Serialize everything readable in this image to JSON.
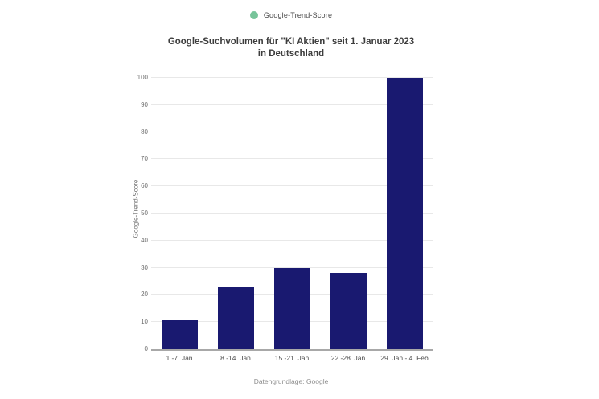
{
  "legend": {
    "label": "Google-Trend-Score",
    "dot_color": "#77c49a",
    "dot_icon": "circle"
  },
  "title": {
    "line1": "Google-Suchvolumen für \"KI Aktien\" seit 1. Januar 2023",
    "line2": "in Deutschland"
  },
  "footer": "Datengrundlage: Google",
  "colors": {
    "bar": "#191970",
    "gridline": "#e8e8e8",
    "axis_line": "#a8a8a8",
    "title_text": "#3d3d3d",
    "tick_text": "#6e6e6e",
    "legend_dot": "#77c49a"
  },
  "chart_data": {
    "type": "bar",
    "title": "Google-Suchvolumen für \"KI Aktien\" seit 1. Januar 2023 in Deutschland",
    "categories": [
      "1.-7. Jan",
      "8.-14. Jan",
      "15.-21. Jan",
      "22.-28. Jan",
      "29. Jan - 4. Feb"
    ],
    "values": [
      11,
      23,
      30,
      28,
      100
    ],
    "series_name": "Google-Trend-Score",
    "xlabel": "",
    "ylabel": "Google-Trend-Score",
    "ylim": [
      0,
      100
    ],
    "ytick_step": 10,
    "yticks": [
      0,
      10,
      20,
      30,
      40,
      50,
      60,
      70,
      80,
      90,
      100
    ],
    "grid": true,
    "legend_position": "top-center",
    "bar_color": "#191970",
    "source_note": "Datengrundlage: Google"
  }
}
